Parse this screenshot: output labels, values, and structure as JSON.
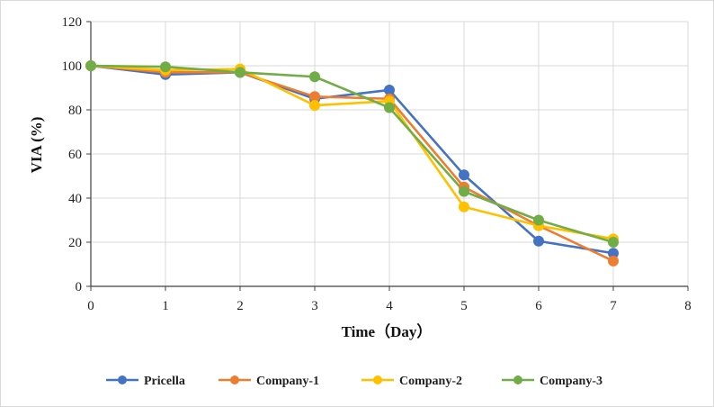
{
  "chart_data": {
    "type": "line",
    "title": "",
    "xlabel": "Time（Day）",
    "ylabel": "VIA (%)",
    "xlim": [
      0,
      8
    ],
    "ylim": [
      0,
      120
    ],
    "xticks": [
      "0",
      "1",
      "2",
      "3",
      "4",
      "5",
      "6",
      "7",
      "8"
    ],
    "yticks": [
      "0",
      "20",
      "40",
      "60",
      "80",
      "100",
      "120"
    ],
    "grid": true,
    "legend_position": "bottom",
    "x": [
      0,
      1,
      2,
      3,
      4,
      5,
      6,
      7
    ],
    "series": [
      {
        "name": "Pricella",
        "color": "#4472c4",
        "values": [
          100,
          96,
          97,
          85,
          89,
          50.5,
          20.5,
          15
        ]
      },
      {
        "name": "Company-1",
        "color": "#ed7d31",
        "values": [
          100,
          97,
          97,
          86,
          85,
          45,
          27.5,
          11.5
        ]
      },
      {
        "name": "Company-2",
        "color": "#ffc000",
        "values": [
          100,
          98,
          98.5,
          82,
          84,
          36,
          27.5,
          21.5
        ]
      },
      {
        "name": "Company-3",
        "color": "#70ad47",
        "values": [
          100,
          99.5,
          97,
          95,
          81,
          43,
          30,
          20
        ]
      }
    ]
  }
}
